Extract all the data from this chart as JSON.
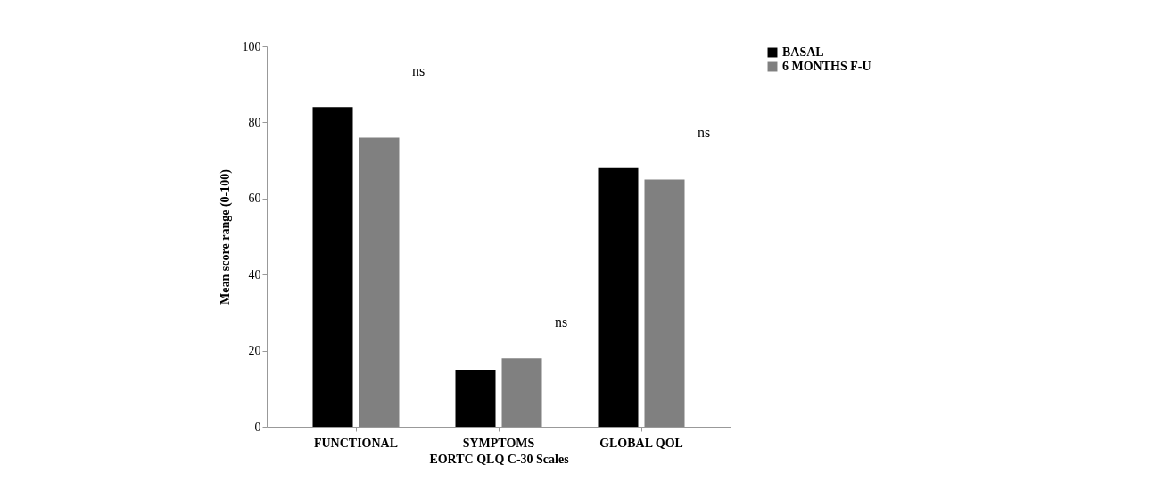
{
  "chart_data": {
    "type": "bar",
    "xlabel": "EORTC QLQ C-30 Scales",
    "ylabel": "Mean score range (0-100)",
    "categories": [
      "FUNCTIONAL",
      "SYMPTOMS",
      "GLOBAL QOL"
    ],
    "series": [
      {
        "name": "BASAL",
        "color": "#000000",
        "values": [
          84,
          15,
          68
        ]
      },
      {
        "name": "6 MONTHS F-U",
        "color": "#808080",
        "values": [
          76,
          18,
          65
        ]
      }
    ],
    "ylim": [
      0,
      100
    ],
    "yticks": [
      0,
      20,
      40,
      60,
      80,
      100
    ],
    "grid": false,
    "legend": "right",
    "annotations": [
      "ns",
      "ns",
      "ns"
    ]
  }
}
